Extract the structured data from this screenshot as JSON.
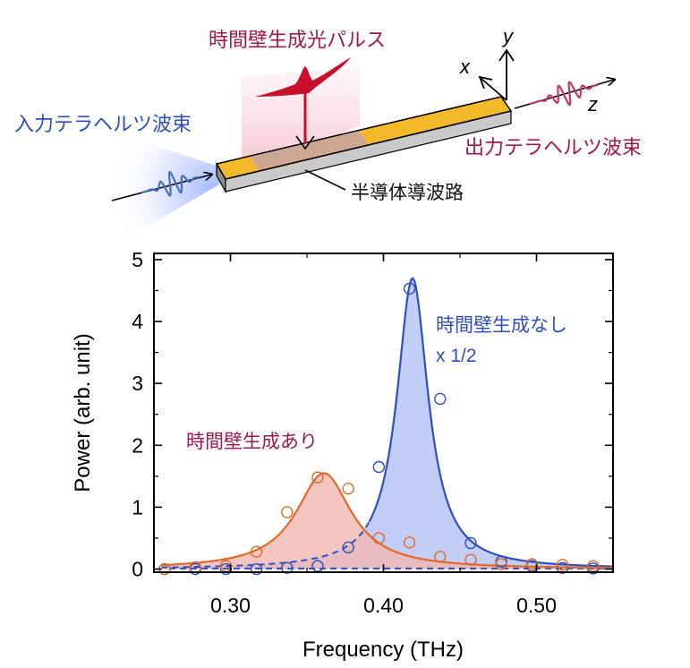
{
  "diagram": {
    "label_pulse": "時間壁生成光パルス",
    "label_input": "入力テラヘルツ波束",
    "label_output": "出力テラヘルツ波束",
    "label_waveguide": "半導体導波路",
    "axis_x": "x",
    "axis_y": "y",
    "axis_z": "z"
  },
  "colors": {
    "blue": "#2e4fc0",
    "orange": "#e06a2a",
    "crimson": "#a3174f",
    "gold": "#f2b92a",
    "laser": "#c8102e"
  },
  "chart_data": {
    "type": "line",
    "xlabel": "Frequency (THz)",
    "ylabel": "Power (arb.  unit)",
    "xlim": [
      0.25,
      0.55
    ],
    "ylim": [
      -0.05,
      5.1
    ],
    "xticks": [
      "0.30",
      "0.40",
      "0.50"
    ],
    "xtick_values": [
      0.3,
      0.4,
      0.5
    ],
    "yticks": [
      "0",
      "1",
      "2",
      "3",
      "4",
      "5"
    ],
    "ytick_values": [
      0,
      1,
      2,
      3,
      4,
      5
    ],
    "series": [
      {
        "name": "時間壁生成なし",
        "name_line2": "x 1/2",
        "color": "#2e4fc0",
        "fit": {
          "center": 0.419,
          "width": 0.0125,
          "amplitude": 4.7
        },
        "points": [
          {
            "x": 0.257,
            "y": 0.0
          },
          {
            "x": 0.277,
            "y": 0.0
          },
          {
            "x": 0.297,
            "y": 0.0
          },
          {
            "x": 0.317,
            "y": 0.0
          },
          {
            "x": 0.337,
            "y": 0.02
          },
          {
            "x": 0.357,
            "y": 0.05
          },
          {
            "x": 0.377,
            "y": 0.35
          },
          {
            "x": 0.397,
            "y": 1.65
          },
          {
            "x": 0.417,
            "y": 4.53
          },
          {
            "x": 0.437,
            "y": 2.75
          },
          {
            "x": 0.457,
            "y": 0.42
          },
          {
            "x": 0.477,
            "y": 0.12
          },
          {
            "x": 0.497,
            "y": 0.05
          },
          {
            "x": 0.517,
            "y": 0.02
          },
          {
            "x": 0.537,
            "y": 0.01
          }
        ]
      },
      {
        "name": "時間壁生成あり",
        "color": "#e06a2a",
        "fit": {
          "center": 0.361,
          "width": 0.022,
          "amplitude": 1.55
        },
        "points": [
          {
            "x": 0.257,
            "y": 0.0
          },
          {
            "x": 0.277,
            "y": 0.03
          },
          {
            "x": 0.297,
            "y": 0.05
          },
          {
            "x": 0.317,
            "y": 0.28
          },
          {
            "x": 0.337,
            "y": 0.92
          },
          {
            "x": 0.357,
            "y": 1.48
          },
          {
            "x": 0.377,
            "y": 1.3
          },
          {
            "x": 0.397,
            "y": 0.5
          },
          {
            "x": 0.417,
            "y": 0.43
          },
          {
            "x": 0.437,
            "y": 0.2
          },
          {
            "x": 0.457,
            "y": 0.15
          },
          {
            "x": 0.477,
            "y": 0.08
          },
          {
            "x": 0.497,
            "y": 0.08
          },
          {
            "x": 0.517,
            "y": 0.07
          },
          {
            "x": 0.537,
            "y": 0.05
          }
        ]
      }
    ]
  }
}
